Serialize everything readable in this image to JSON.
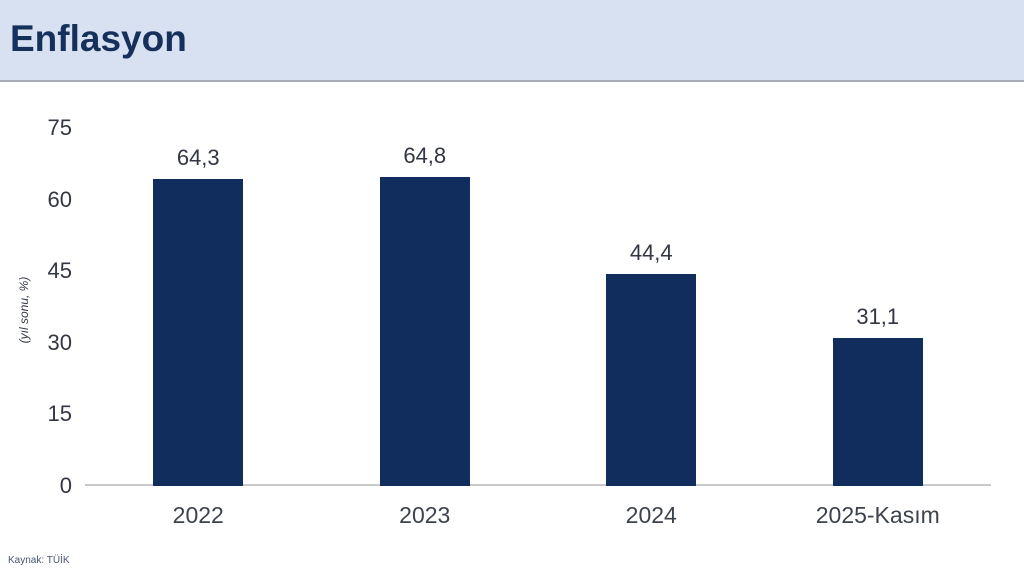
{
  "header": {
    "title": "Enflasyon"
  },
  "source": {
    "label": "Kaynak: TÜİK"
  },
  "colors": {
    "header_bg": "#d8e1f1",
    "title": "#16305c",
    "bar": "#112d5e",
    "axis_text": "#333744",
    "xlabel": "#3d434e",
    "baseline": "#c9c9c9",
    "source": "#4a5572"
  },
  "chart_data": {
    "type": "bar",
    "title": "Enflasyon",
    "categories": [
      "2022",
      "2023",
      "2024",
      "2025-Kasım"
    ],
    "values": [
      64.3,
      64.8,
      44.4,
      31.1
    ],
    "value_labels": [
      "64,3",
      "64,8",
      "44,4",
      "31,1"
    ],
    "xlabel": "",
    "ylabel": "(yıl sonu, %)",
    "ylim": [
      0,
      75
    ],
    "yticks": [
      0,
      15,
      30,
      45,
      60,
      75
    ],
    "grid": false,
    "legend": false,
    "source": "Kaynak: TÜİK"
  }
}
